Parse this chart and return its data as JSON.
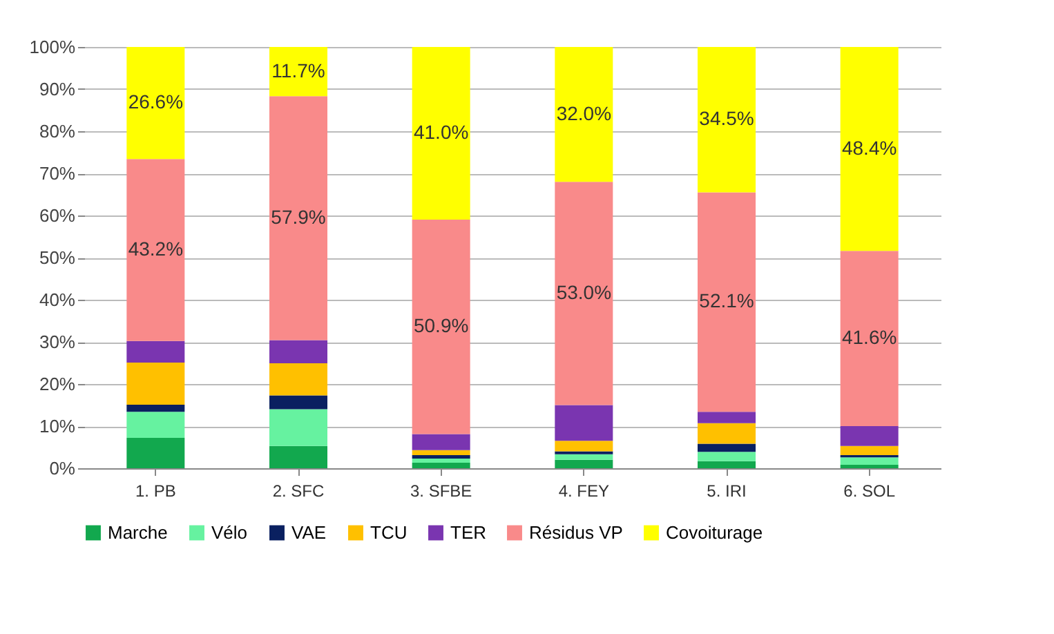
{
  "chart_data": {
    "type": "bar",
    "stacked": true,
    "categories": [
      "1. PB",
      "2. SFC",
      "3. SFBE",
      "4. FEY",
      "5. IRI",
      "6. SOL"
    ],
    "ylim": [
      0,
      100
    ],
    "yticks": [
      {
        "value": 0,
        "label": "0%"
      },
      {
        "value": 10,
        "label": "10%"
      },
      {
        "value": 20,
        "label": "20%"
      },
      {
        "value": 30,
        "label": "30%"
      },
      {
        "value": 40,
        "label": "40%"
      },
      {
        "value": 50,
        "label": "50%"
      },
      {
        "value": 60,
        "label": "60%"
      },
      {
        "value": 70,
        "label": "70%"
      },
      {
        "value": 80,
        "label": "80%"
      },
      {
        "value": 90,
        "label": "90%"
      },
      {
        "value": 100,
        "label": "100%"
      }
    ],
    "grid": "y",
    "legend": "bottom",
    "series": [
      {
        "name": "Marche",
        "color": "#12a84e",
        "values": [
          7.2,
          5.3,
          1.3,
          2.0,
          1.7,
          0.8
        ]
      },
      {
        "name": "Vélo",
        "color": "#66f2a0",
        "values": [
          6.2,
          8.7,
          1.0,
          1.3,
          2.2,
          1.8
        ]
      },
      {
        "name": "VAE",
        "color": "#0a2060",
        "values": [
          1.7,
          3.3,
          0.8,
          0.7,
          1.9,
          0.5
        ]
      },
      {
        "name": "TCU",
        "color": "#ffc000",
        "values": [
          10.0,
          7.6,
          1.2,
          2.5,
          4.9,
          2.2
        ]
      },
      {
        "name": "TER",
        "color": "#7a35b0",
        "values": [
          5.1,
          5.5,
          3.8,
          8.5,
          2.7,
          4.7
        ]
      },
      {
        "name": "Résidus VP",
        "color": "#f98a8a",
        "values": [
          43.2,
          57.9,
          50.9,
          53.0,
          52.1,
          41.6
        ],
        "value_labels": [
          "43.2%",
          "57.9%",
          "50.9%",
          "53.0%",
          "52.1%",
          "41.6%"
        ]
      },
      {
        "name": "Covoiturage",
        "color": "#ffff00",
        "values": [
          26.6,
          11.7,
          41.0,
          32.0,
          34.5,
          48.4
        ],
        "value_labels": [
          "26.6%",
          "11.7%",
          "41.0%",
          "32.0%",
          "34.5%",
          "48.4%"
        ]
      }
    ]
  }
}
